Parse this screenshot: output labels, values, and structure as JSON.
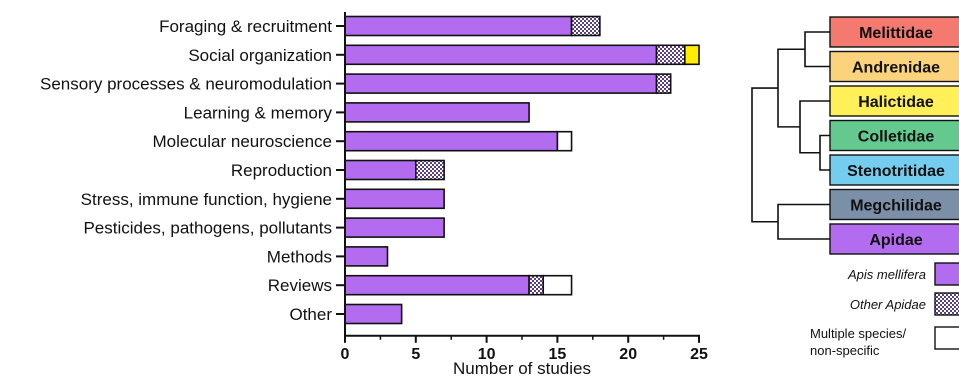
{
  "chart_data": {
    "type": "bar",
    "orientation": "horizontal",
    "stacked": true,
    "title": "",
    "xlabel": "Number of studies",
    "ylabel": "",
    "xlim": [
      0,
      25
    ],
    "xticks": [
      0,
      5,
      10,
      15,
      20,
      25
    ],
    "grid": false,
    "legend_position": "right",
    "categories": [
      "Foraging & recruitment",
      "Social organization",
      "Sensory processes & neuromodulation",
      "Learning & memory",
      "Molecular neuroscience",
      "Reproduction",
      "Stress, immune function, hygiene",
      "Pesticides, pathogens, pollutants",
      "Methods",
      "Reviews",
      "Other"
    ],
    "series": [
      {
        "name": "Apis mellifera",
        "color": "#b36cf0",
        "pattern": "solid",
        "values": [
          16,
          22,
          22,
          13,
          15,
          5,
          7,
          7,
          3,
          13,
          4
        ]
      },
      {
        "name": "Other Apidae",
        "color": "#8a5bb0",
        "pattern": "checkered",
        "values": [
          2,
          2,
          1,
          0,
          0,
          2,
          0,
          0,
          0,
          1,
          0
        ]
      },
      {
        "name": "Multiple species/ non-specific",
        "color": "#ffffff",
        "pattern": "solid",
        "values": [
          0,
          0,
          0,
          0,
          1,
          0,
          0,
          0,
          0,
          2,
          0
        ]
      },
      {
        "name": "",
        "color": "#ffee00",
        "pattern": "solid",
        "values": [
          0,
          1,
          0,
          0,
          0,
          0,
          0,
          0,
          0,
          0,
          0
        ]
      }
    ]
  },
  "phylogeny": {
    "families": [
      {
        "name": "Melittidae",
        "color": "#f47a70"
      },
      {
        "name": "Andrenidae",
        "color": "#fbd37c"
      },
      {
        "name": "Halictidae",
        "color": "#fff05a"
      },
      {
        "name": "Colletidae",
        "color": "#63c98e"
      },
      {
        "name": "Stenotritidae",
        "color": "#74cdef"
      },
      {
        "name": "Megchilidae",
        "color": "#7b8fa8"
      },
      {
        "name": "Apidae",
        "color": "#b36cf0"
      }
    ]
  },
  "legend": {
    "items": [
      {
        "label": "Apis mellifera",
        "italic": true,
        "swatch": "#b36cf0",
        "pattern": "solid"
      },
      {
        "label": "Other Apidae",
        "italic": true,
        "swatch": "#8a5bb0",
        "pattern": "checkered"
      },
      {
        "label": "Multiple species/ non-specific",
        "italic": false,
        "swatch": "#ffffff",
        "pattern": "solid"
      }
    ]
  }
}
